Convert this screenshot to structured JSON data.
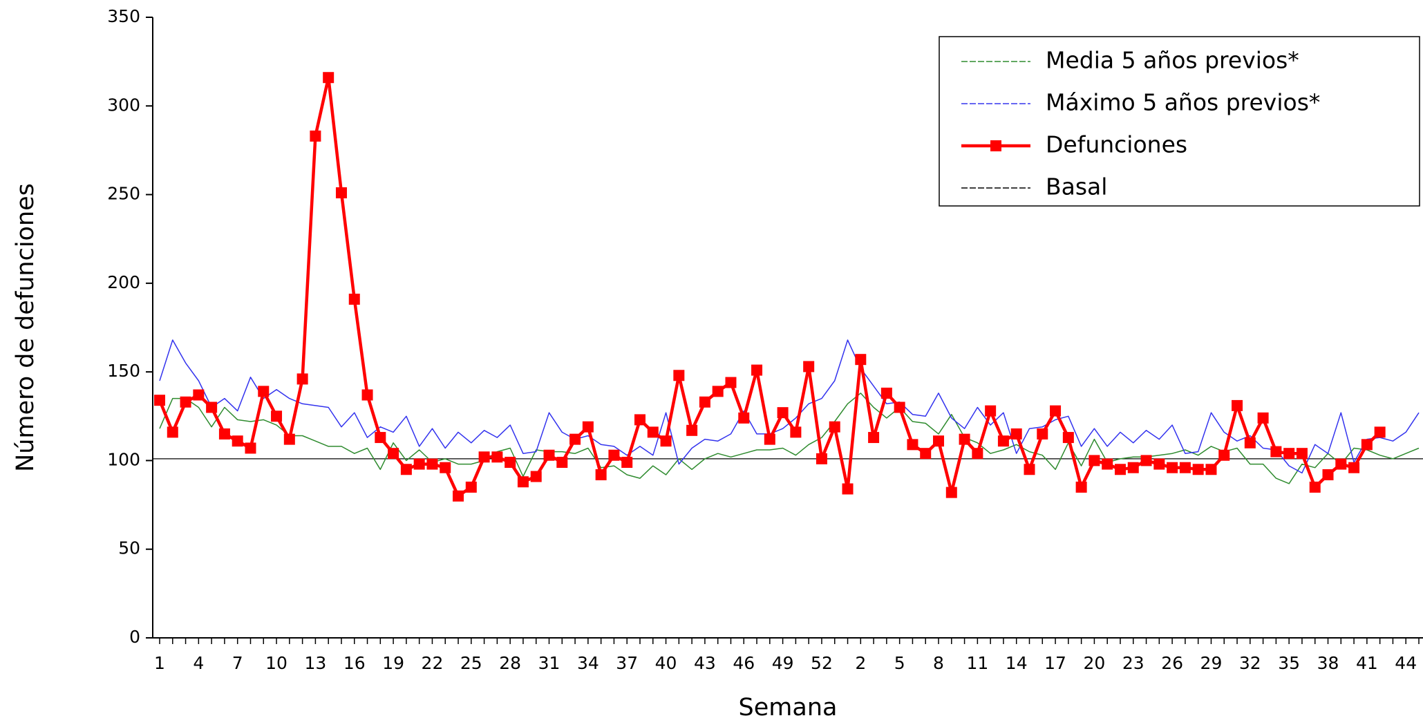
{
  "chart_data": {
    "type": "line",
    "x_label": "Semana",
    "y_label": "Número de defunciones",
    "categories": [
      "1",
      null,
      null,
      "4",
      null,
      null,
      "7",
      null,
      null,
      "10",
      null,
      null,
      "13",
      null,
      null,
      "16",
      null,
      null,
      "19",
      null,
      null,
      "22",
      null,
      null,
      "25",
      null,
      null,
      "28",
      null,
      null,
      "31",
      null,
      null,
      "34",
      null,
      null,
      "37",
      null,
      null,
      "40",
      null,
      null,
      "43",
      null,
      null,
      "46",
      null,
      null,
      "49",
      null,
      null,
      "52",
      null,
      null,
      "2",
      null,
      null,
      "5",
      null,
      null,
      "8",
      null,
      null,
      "11",
      null,
      null,
      "14",
      null,
      null,
      "17",
      null,
      null,
      "20",
      null,
      null,
      "23",
      null,
      null,
      "26",
      null,
      null,
      "29",
      null,
      null,
      "32",
      null,
      null,
      "35",
      null,
      null,
      "38",
      null,
      null,
      "41",
      null,
      null,
      "44",
      null
    ],
    "series": [
      {
        "name": "Media 5 años previos*",
        "color": "#2e8b2e",
        "values": [
          118,
          135,
          135,
          130,
          119,
          130,
          123,
          122,
          123,
          120,
          114,
          114,
          111,
          108,
          108,
          104,
          107,
          95,
          110,
          100,
          106,
          99,
          101,
          98,
          98,
          100,
          105,
          107,
          91,
          106,
          105,
          105,
          104,
          107,
          96,
          97,
          92,
          90,
          97,
          92,
          101,
          95,
          101,
          104,
          102,
          104,
          106,
          106,
          107,
          103,
          109,
          113,
          122,
          132,
          138,
          130,
          124,
          130,
          122,
          121,
          115,
          126,
          113,
          110,
          104,
          106,
          109,
          105,
          103,
          95,
          110,
          97,
          112,
          99,
          101,
          102,
          102,
          103,
          104,
          106,
          103,
          108,
          105,
          107,
          98,
          98,
          90,
          87,
          98,
          96,
          104,
          98,
          107,
          106,
          103,
          101,
          104,
          107
        ]
      },
      {
        "name": "Máximo 5 años previos*",
        "color": "#3333ee",
        "values": [
          145,
          168,
          155,
          145,
          130,
          135,
          128,
          147,
          135,
          140,
          135,
          132,
          131,
          130,
          119,
          127,
          113,
          119,
          116,
          125,
          108,
          118,
          107,
          116,
          110,
          117,
          113,
          120,
          104,
          105,
          127,
          116,
          112,
          114,
          109,
          108,
          103,
          108,
          103,
          127,
          98,
          107,
          112,
          111,
          115,
          128,
          115,
          115,
          118,
          124,
          132,
          135,
          145,
          168,
          152,
          142,
          132,
          133,
          126,
          125,
          138,
          124,
          118,
          130,
          120,
          127,
          104,
          118,
          119,
          123,
          125,
          108,
          118,
          108,
          116,
          110,
          117,
          112,
          120,
          104,
          105,
          127,
          116,
          111,
          114,
          107,
          106,
          97,
          93,
          109,
          104,
          127,
          99,
          112,
          113,
          111,
          116,
          127
        ]
      },
      {
        "name": "Defunciones",
        "color": "#ff0000",
        "marker": "square",
        "values": [
          134,
          116,
          133,
          137,
          130,
          115,
          111,
          107,
          139,
          125,
          112,
          146,
          283,
          316,
          251,
          191,
          137,
          113,
          104,
          95,
          98,
          98,
          96,
          80,
          85,
          102,
          102,
          99,
          88,
          91,
          103,
          99,
          112,
          119,
          92,
          103,
          99,
          123,
          116,
          111,
          148,
          117,
          133,
          139,
          144,
          124,
          151,
          112,
          127,
          116,
          153,
          101,
          119,
          84,
          157,
          113,
          138,
          130,
          109,
          104,
          111,
          82,
          112,
          104,
          128,
          111,
          115,
          95,
          115,
          128,
          113,
          85,
          100,
          98,
          95,
          96,
          100,
          98,
          96,
          96,
          95,
          95,
          103,
          131,
          110,
          124,
          105,
          104,
          104,
          85,
          92,
          98,
          96,
          109,
          116,
          null,
          null,
          null
        ]
      }
    ],
    "basal": {
      "name": "Basal",
      "color": "#000000",
      "value": 101
    },
    "ylim": [
      0,
      350
    ],
    "yticks": [
      0,
      50,
      100,
      150,
      200,
      250,
      300,
      350
    ],
    "legend": "top-right"
  }
}
